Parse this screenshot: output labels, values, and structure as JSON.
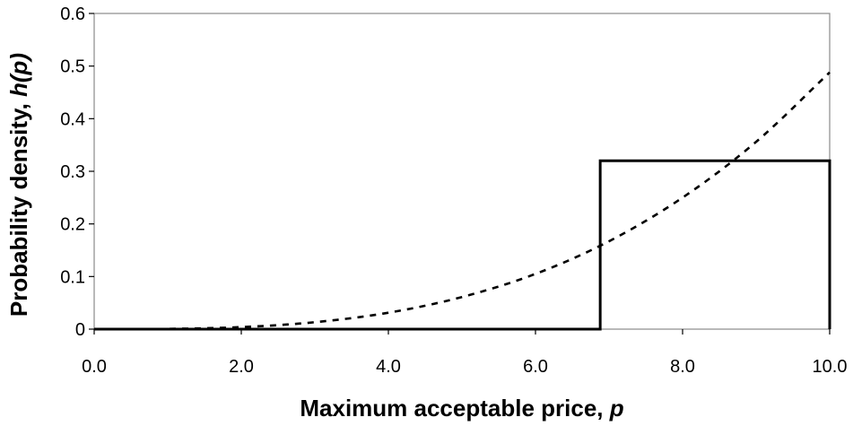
{
  "chart_data": {
    "type": "line",
    "xlabel_text": "Maximum acceptable price, ",
    "xlabel_var": "p",
    "ylabel_text": "Probability density, ",
    "ylabel_var": "h(p)",
    "xlim": [
      0,
      10
    ],
    "ylim": [
      0,
      0.6
    ],
    "x_ticks": [
      "0.0",
      "2.0",
      "4.0",
      "6.0",
      "8.0",
      "10.0"
    ],
    "y_ticks": [
      "0",
      "0.1",
      "0.2",
      "0.3",
      "0.4",
      "0.5",
      "0.6"
    ],
    "grid": false,
    "legend": "none",
    "series": [
      {
        "style": "solid",
        "color": "#000000",
        "x": [
          0,
          6.88,
          6.88,
          10,
          10
        ],
        "y": [
          0,
          0,
          0.32,
          0.32,
          0
        ]
      },
      {
        "style": "dashed",
        "color": "#000000",
        "x": [
          0,
          1,
          2,
          3,
          4,
          5,
          6,
          7,
          8,
          9,
          10
        ],
        "y": [
          0,
          0.0005,
          0.0039,
          0.0132,
          0.0312,
          0.061,
          0.105,
          0.167,
          0.25,
          0.356,
          0.488
        ]
      }
    ]
  }
}
